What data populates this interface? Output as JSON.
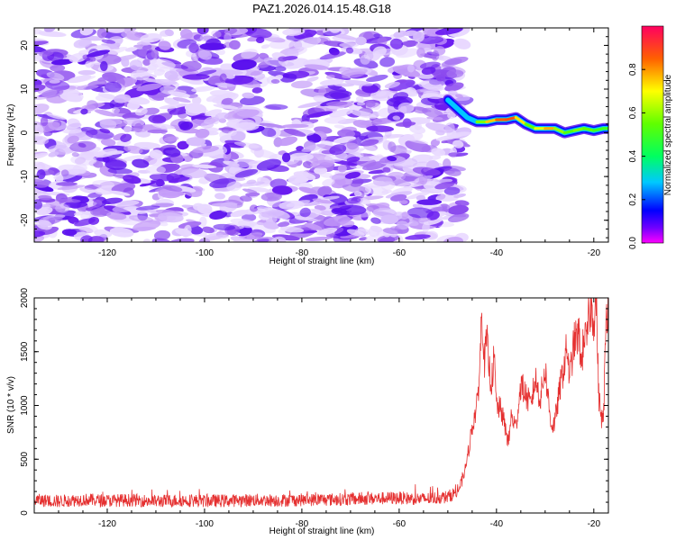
{
  "figure": {
    "title": "PAZ1.2026.014.15.48.G18"
  },
  "chart_data": [
    {
      "type": "heatmap",
      "title": "PAZ1.2026.014.15.48.G18",
      "xlabel": "Height of straight line (km)",
      "ylabel": "Frequency (Hz)",
      "xlim": [
        -135,
        -17
      ],
      "ylim": [
        -25,
        24
      ],
      "xticks": [
        "-120",
        "-100",
        "-80",
        "-60",
        "-40",
        "-20"
      ],
      "yticks": [
        "-20",
        "-10",
        "0",
        "10",
        "20"
      ],
      "colorbar": {
        "label": "Normalized spectral amplitude",
        "range": [
          0,
          1
        ],
        "ticks": [
          "0.0",
          "0.2",
          "0.4",
          "0.6",
          "0.8"
        ]
      },
      "noise_region": {
        "x_range": [
          -135,
          -47
        ],
        "amplitude": 0.15
      },
      "ridge": {
        "x": [
          -50,
          -48,
          -46,
          -44,
          -42,
          -40,
          -38,
          -36,
          -34,
          -32,
          -30,
          -28,
          -26,
          -24,
          -22,
          -20,
          -18,
          -17
        ],
        "y": [
          7.5,
          5.5,
          3.5,
          2.5,
          2.5,
          3,
          3,
          3.5,
          2,
          1,
          1,
          1,
          0,
          0.5,
          1,
          0.5,
          1,
          1
        ],
        "amplitude": [
          0.25,
          0.3,
          0.35,
          0.45,
          0.7,
          0.8,
          0.9,
          0.85,
          0.6,
          0.5,
          0.85,
          0.7,
          0.5,
          0.55,
          0.6,
          0.5,
          0.5,
          0.5
        ]
      }
    },
    {
      "type": "line",
      "xlabel": "Height of straight line (km)",
      "ylabel": "SNR (10 * v/v)",
      "xlim": [
        -135,
        -17
      ],
      "ylim": [
        0,
        2000
      ],
      "xticks": [
        "-120",
        "-100",
        "-80",
        "-60",
        "-40",
        "-20"
      ],
      "yticks": [
        "0",
        "500",
        "1000",
        "1500",
        "2000"
      ],
      "color": "#e53030",
      "series": [
        {
          "x": [
            -135,
            -130,
            -125,
            -120,
            -115,
            -110,
            -105,
            -100,
            -95,
            -90,
            -85,
            -80,
            -75,
            -70,
            -65,
            -60,
            -55,
            -50,
            -48,
            -47,
            -46,
            -45,
            -44,
            -43.5,
            -43,
            -42.5,
            -42,
            -41.5,
            -41,
            -40.5,
            -40,
            -39,
            -38,
            -37.5,
            -37,
            -36,
            -35,
            -34,
            -33,
            -32,
            -31,
            -30,
            -29,
            -28.5,
            -28,
            -27,
            -26,
            -25.5,
            -25,
            -24,
            -23,
            -22.5,
            -22,
            -21.5,
            -21,
            -20.5,
            -20,
            -19.5,
            -19,
            -18.5,
            -18,
            -17.5,
            -17
          ],
          "y": [
            120,
            110,
            125,
            115,
            120,
            110,
            118,
            112,
            115,
            120,
            118,
            122,
            125,
            128,
            135,
            140,
            130,
            150,
            200,
            300,
            500,
            800,
            1000,
            1300,
            1900,
            1400,
            1600,
            1350,
            1200,
            1450,
            1000,
            950,
            750,
            650,
            900,
            800,
            1200,
            1100,
            1000,
            1250,
            1050,
            1350,
            900,
            800,
            850,
            1150,
            1400,
            1550,
            1250,
            1600,
            1650,
            1350,
            1700,
            1550,
            1850,
            1900,
            1800,
            2000,
            1100,
            900,
            850,
            1800,
            2000
          ]
        }
      ]
    }
  ]
}
